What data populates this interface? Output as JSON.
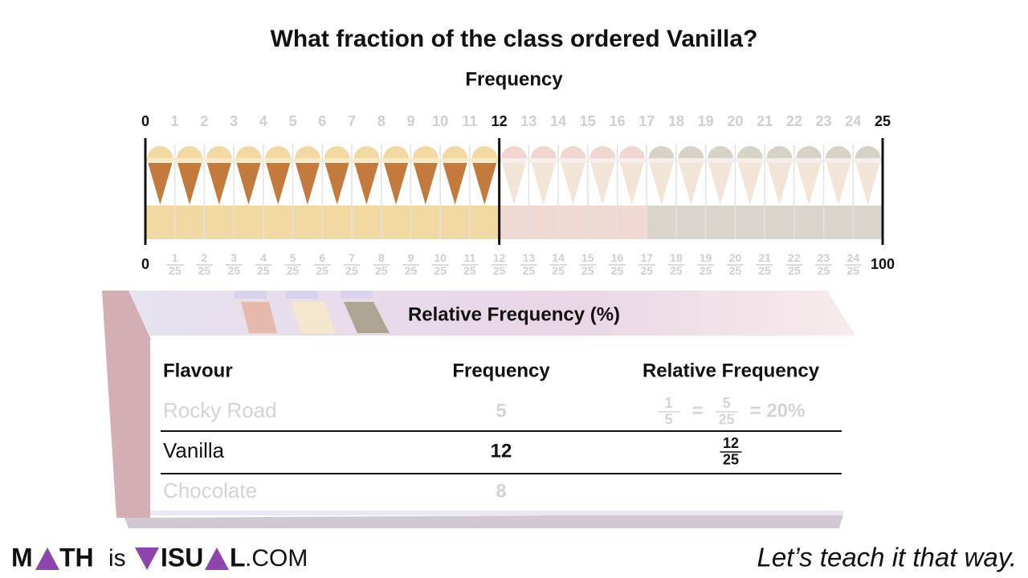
{
  "title": "What fraction of the class ordered  Vanilla?",
  "number_line": {
    "label": "Frequency",
    "top_ticks": [
      0,
      1,
      2,
      3,
      4,
      5,
      6,
      7,
      8,
      9,
      10,
      11,
      12,
      13,
      14,
      15,
      16,
      17,
      18,
      19,
      20,
      21,
      22,
      23,
      24,
      25
    ],
    "bottom_ticks": [
      0,
      {
        "numerator": 1,
        "denominator": 25
      },
      {
        "numerator": 2,
        "denominator": 25
      },
      {
        "numerator": 3,
        "denominator": 25
      },
      {
        "numerator": 4,
        "denominator": 25
      },
      {
        "numerator": 5,
        "denominator": 25
      },
      {
        "numerator": 6,
        "denominator": 25
      },
      {
        "numerator": 7,
        "denominator": 25
      },
      {
        "numerator": 8,
        "denominator": 25
      },
      {
        "numerator": 9,
        "denominator": 25
      },
      {
        "numerator": 10,
        "denominator": 25
      },
      {
        "numerator": 11,
        "denominator": 25
      },
      {
        "numerator": 12,
        "denominator": 25
      },
      {
        "numerator": 13,
        "denominator": 25
      },
      {
        "numerator": 14,
        "denominator": 25
      },
      {
        "numerator": 15,
        "denominator": 25
      },
      {
        "numerator": 16,
        "denominator": 25
      },
      {
        "numerator": 17,
        "denominator": 25
      },
      {
        "numerator": 18,
        "denominator": 25
      },
      {
        "numerator": 19,
        "denominator": 25
      },
      {
        "numerator": 20,
        "denominator": 25
      },
      {
        "numerator": 21,
        "denominator": 25
      },
      {
        "numerator": 22,
        "denominator": 25
      },
      {
        "numerator": 23,
        "denominator": 25
      },
      {
        "numerator": 24,
        "denominator": 25
      },
      100
    ]
  },
  "panel_title": "Relative Frequency (%)",
  "table": {
    "columns": [
      "Flavour",
      "Frequency",
      "Relative Frequency"
    ],
    "rows": [
      {
        "flavour": "Rocky Road",
        "frequency": 5,
        "color": "#e9c8c0",
        "relative_frequency": [
          {
            "numerator": 1,
            "denominator": 5
          },
          "=",
          {
            "numerator": 5,
            "denominator": 25
          },
          "= 20%"
        ]
      },
      {
        "flavour": "Vanilla",
        "frequency": 12,
        "color": "#f2d9a3",
        "relative_frequency": [
          {
            "numerator": 12,
            "denominator": 25
          }
        ]
      },
      {
        "flavour": "Chocolate",
        "frequency": 8,
        "color": "#c9c3b6"
      }
    ]
  },
  "footer": {
    "logo": {
      "math": [
        "M",
        "TH"
      ],
      "is": "is",
      "visual": [
        "ISU",
        "L"
      ],
      "com": ".COM"
    },
    "tagline": "Let’s teach it that way."
  }
}
